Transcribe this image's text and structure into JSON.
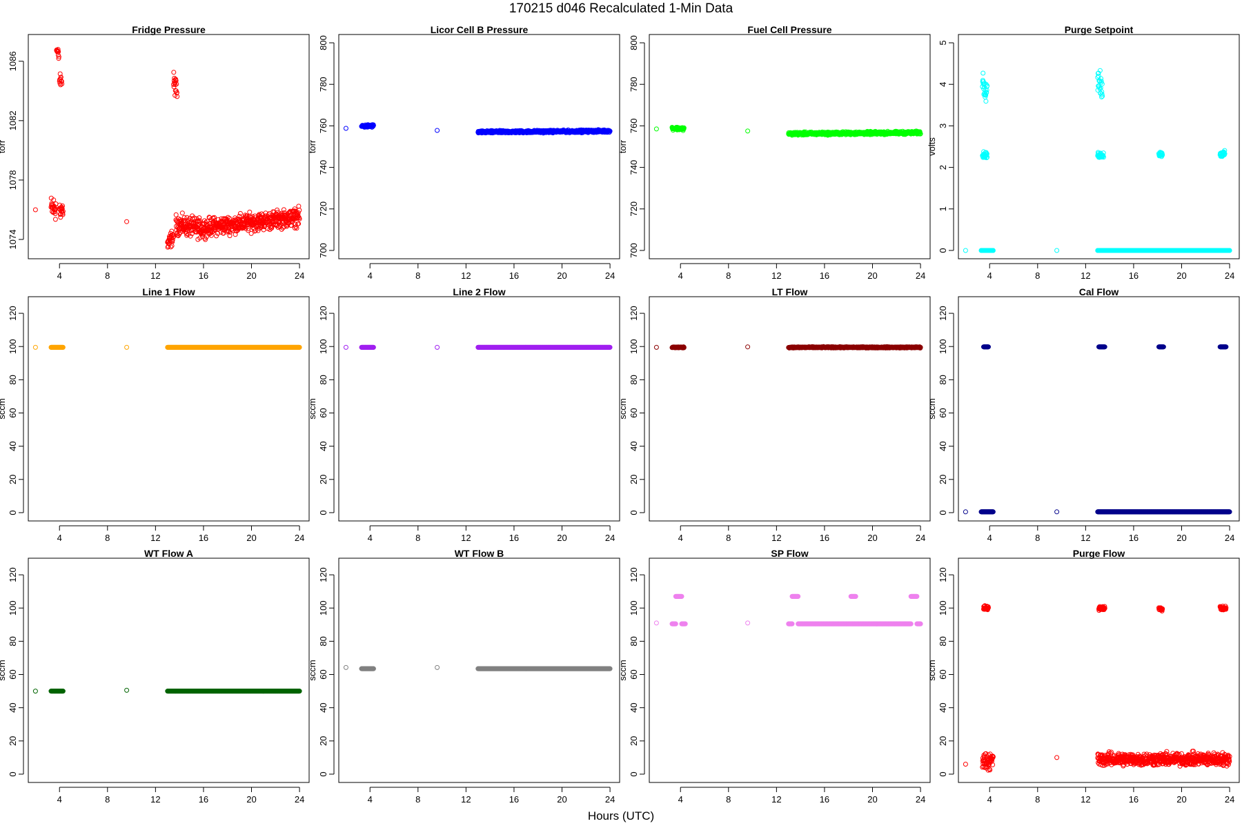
{
  "figure": {
    "title": "170215   d046   Recalculated 1-Min Data",
    "xlabel": "Hours (UTC)"
  },
  "chart_data": [
    {
      "type": "scatter",
      "title": "Fridge Pressure",
      "ylabel": "torr",
      "color": "#ff0000",
      "xlim": [
        1.4,
        24.8
      ],
      "ylim": [
        1072.7,
        1087.8
      ],
      "xticks": [
        4,
        8,
        12,
        16,
        20,
        24
      ],
      "yticks": [
        1074,
        1078,
        1082,
        1086
      ],
      "segments": [
        {
          "x": [
            2.0,
            2.0
          ],
          "y": [
            1076.0,
            1076.0
          ],
          "jitter": 0
        },
        {
          "x": [
            3.3,
            3.7
          ],
          "y": [
            1076.1,
            1076.1
          ],
          "jitter": 0.7
        },
        {
          "x": [
            3.75,
            3.95
          ],
          "y": [
            1086.8,
            1086.3
          ],
          "jitter": 0.35
        },
        {
          "x": [
            4.0,
            4.2
          ],
          "y": [
            1084.7,
            1084.7
          ],
          "jitter": 0.35
        },
        {
          "x": [
            4.0,
            4.3
          ],
          "y": [
            1076.0,
            1076.0
          ],
          "jitter": 0.5
        },
        {
          "x": [
            9.6,
            9.6
          ],
          "y": [
            1075.2,
            1075.2
          ],
          "jitter": 0
        },
        {
          "x": [
            13.0,
            13.5
          ],
          "y": [
            1073.6,
            1074.3
          ],
          "jitter": 0.45
        },
        {
          "x": [
            13.5,
            13.8
          ],
          "y": [
            1084.6,
            1084.0
          ],
          "jitter": 0.55
        },
        {
          "x": [
            13.7,
            16.0
          ],
          "y": [
            1075.0,
            1074.7
          ],
          "jitter": 0.55
        },
        {
          "x": [
            16.0,
            24.0
          ],
          "y": [
            1074.8,
            1075.5
          ],
          "jitter": 0.5
        }
      ]
    },
    {
      "type": "scatter",
      "title": "Licor Cell B Pressure",
      "ylabel": "torr",
      "color": "#0000ff",
      "xlim": [
        1.4,
        24.8
      ],
      "ylim": [
        696,
        804
      ],
      "xticks": [
        4,
        8,
        12,
        16,
        20,
        24
      ],
      "yticks": [
        700,
        720,
        740,
        760,
        780,
        800
      ],
      "segments": [
        {
          "x": [
            2.0,
            2.0
          ],
          "y": [
            758.8,
            758.8
          ],
          "jitter": 0
        },
        {
          "x": [
            3.3,
            4.3
          ],
          "y": [
            759.8,
            760.0
          ],
          "jitter": 0.6
        },
        {
          "x": [
            9.6,
            9.6
          ],
          "y": [
            757.8,
            757.8
          ],
          "jitter": 0
        },
        {
          "x": [
            13.0,
            24.0
          ],
          "y": [
            757.0,
            757.5
          ],
          "jitter": 0.5
        }
      ]
    },
    {
      "type": "scatter",
      "title": "Fuel Cell Pressure",
      "ylabel": "torr",
      "color": "#00ff00",
      "xlim": [
        1.4,
        24.8
      ],
      "ylim": [
        696,
        804
      ],
      "xticks": [
        4,
        8,
        12,
        16,
        20,
        24
      ],
      "yticks": [
        700,
        720,
        740,
        760,
        780,
        800
      ],
      "segments": [
        {
          "x": [
            2.0,
            2.0
          ],
          "y": [
            758.5,
            758.5
          ],
          "jitter": 0
        },
        {
          "x": [
            3.3,
            4.3
          ],
          "y": [
            758.8,
            758.6
          ],
          "jitter": 0.6
        },
        {
          "x": [
            9.6,
            9.6
          ],
          "y": [
            757.5,
            757.5
          ],
          "jitter": 0
        },
        {
          "x": [
            13.0,
            24.0
          ],
          "y": [
            756.2,
            756.7
          ],
          "jitter": 0.6
        }
      ]
    },
    {
      "type": "scatter",
      "title": "Purge Setpoint",
      "ylabel": "volts",
      "color": "#00ffff",
      "xlim": [
        1.4,
        24.8
      ],
      "ylim": [
        -0.2,
        5.2
      ],
      "xticks": [
        4,
        8,
        12,
        16,
        20,
        24
      ],
      "yticks": [
        0,
        1,
        2,
        3,
        4,
        5
      ],
      "segments": [
        {
          "x": [
            2.0,
            2.0
          ],
          "y": [
            0.0,
            0.0
          ],
          "jitter": 0
        },
        {
          "x": [
            3.3,
            4.3
          ],
          "y": [
            0.0,
            0.0
          ],
          "jitter": 0
        },
        {
          "x": [
            3.4,
            3.8
          ],
          "y": [
            4.05,
            3.9
          ],
          "jitter": 0.25
        },
        {
          "x": [
            3.4,
            3.8
          ],
          "y": [
            2.3,
            2.3
          ],
          "jitter": 0.06
        },
        {
          "x": [
            9.6,
            9.6
          ],
          "y": [
            0.0,
            0.0
          ],
          "jitter": 0
        },
        {
          "x": [
            13.0,
            13.4
          ],
          "y": [
            4.15,
            3.8
          ],
          "jitter": 0.25
        },
        {
          "x": [
            13.0,
            13.5
          ],
          "y": [
            2.3,
            2.3
          ],
          "jitter": 0.06
        },
        {
          "x": [
            13.0,
            24.0
          ],
          "y": [
            0.0,
            0.0
          ],
          "jitter": 0
        },
        {
          "x": [
            18.1,
            18.4
          ],
          "y": [
            2.32,
            2.32
          ],
          "jitter": 0.05
        },
        {
          "x": [
            23.2,
            23.6
          ],
          "y": [
            2.32,
            2.32
          ],
          "jitter": 0.06
        }
      ]
    },
    {
      "type": "scatter",
      "title": "Line 1 Flow",
      "ylabel": "sccm",
      "color": "#ffa500",
      "xlim": [
        1.4,
        24.8
      ],
      "ylim": [
        -5,
        130
      ],
      "xticks": [
        4,
        8,
        12,
        16,
        20,
        24
      ],
      "yticks": [
        0,
        20,
        40,
        60,
        80,
        100,
        120
      ],
      "segments": [
        {
          "x": [
            2.0,
            2.0
          ],
          "y": [
            99.5,
            99.5
          ],
          "jitter": 0
        },
        {
          "x": [
            3.3,
            4.3
          ],
          "y": [
            99.5,
            99.5
          ],
          "jitter": 0
        },
        {
          "x": [
            9.6,
            9.6
          ],
          "y": [
            99.5,
            99.5
          ],
          "jitter": 0
        },
        {
          "x": [
            13.0,
            24.0
          ],
          "y": [
            99.5,
            99.5
          ],
          "jitter": 0
        }
      ]
    },
    {
      "type": "scatter",
      "title": "Line 2 Flow",
      "ylabel": "sccm",
      "color": "#a020f0",
      "xlim": [
        1.4,
        24.8
      ],
      "ylim": [
        -5,
        130
      ],
      "xticks": [
        4,
        8,
        12,
        16,
        20,
        24
      ],
      "yticks": [
        0,
        20,
        40,
        60,
        80,
        100,
        120
      ],
      "segments": [
        {
          "x": [
            2.0,
            2.0
          ],
          "y": [
            99.5,
            99.5
          ],
          "jitter": 0
        },
        {
          "x": [
            3.3,
            4.3
          ],
          "y": [
            99.5,
            99.5
          ],
          "jitter": 0
        },
        {
          "x": [
            9.6,
            9.6
          ],
          "y": [
            99.5,
            99.5
          ],
          "jitter": 0
        },
        {
          "x": [
            13.0,
            24.0
          ],
          "y": [
            99.5,
            99.5
          ],
          "jitter": 0
        }
      ]
    },
    {
      "type": "scatter",
      "title": "LT Flow",
      "ylabel": "sccm",
      "color": "#8b0000",
      "xlim": [
        1.4,
        24.8
      ],
      "ylim": [
        -5,
        130
      ],
      "xticks": [
        4,
        8,
        12,
        16,
        20,
        24
      ],
      "yticks": [
        0,
        20,
        40,
        60,
        80,
        100,
        120
      ],
      "segments": [
        {
          "x": [
            2.0,
            2.0
          ],
          "y": [
            99.5,
            99.5
          ],
          "jitter": 0
        },
        {
          "x": [
            3.3,
            4.3
          ],
          "y": [
            99.5,
            99.5
          ],
          "jitter": 0.3
        },
        {
          "x": [
            9.6,
            9.6
          ],
          "y": [
            99.8,
            99.8
          ],
          "jitter": 0
        },
        {
          "x": [
            13.0,
            24.0
          ],
          "y": [
            99.5,
            99.5
          ],
          "jitter": 0.3
        }
      ]
    },
    {
      "type": "scatter",
      "title": "Cal Flow",
      "ylabel": "sccm",
      "color": "#00008b",
      "xlim": [
        1.4,
        24.8
      ],
      "ylim": [
        -5,
        130
      ],
      "xticks": [
        4,
        8,
        12,
        16,
        20,
        24
      ],
      "yticks": [
        0,
        20,
        40,
        60,
        80,
        100,
        120
      ],
      "segments": [
        {
          "x": [
            2.0,
            2.0
          ],
          "y": [
            0.5,
            0.5
          ],
          "jitter": 0
        },
        {
          "x": [
            3.3,
            4.3
          ],
          "y": [
            0.5,
            0.5
          ],
          "jitter": 0
        },
        {
          "x": [
            3.5,
            3.9
          ],
          "y": [
            99.8,
            99.8
          ],
          "jitter": 0
        },
        {
          "x": [
            9.6,
            9.6
          ],
          "y": [
            0.5,
            0.5
          ],
          "jitter": 0
        },
        {
          "x": [
            13.0,
            24.0
          ],
          "y": [
            0.5,
            0.5
          ],
          "jitter": 0
        },
        {
          "x": [
            13.1,
            13.6
          ],
          "y": [
            99.8,
            99.8
          ],
          "jitter": 0
        },
        {
          "x": [
            18.1,
            18.5
          ],
          "y": [
            99.8,
            99.8
          ],
          "jitter": 0
        },
        {
          "x": [
            23.2,
            23.7
          ],
          "y": [
            99.8,
            99.8
          ],
          "jitter": 0
        }
      ]
    },
    {
      "type": "scatter",
      "title": "WT Flow A",
      "ylabel": "sccm",
      "color": "#006400",
      "xlim": [
        1.4,
        24.8
      ],
      "ylim": [
        -5,
        130
      ],
      "xticks": [
        4,
        8,
        12,
        16,
        20,
        24
      ],
      "yticks": [
        0,
        20,
        40,
        60,
        80,
        100,
        120
      ],
      "segments": [
        {
          "x": [
            2.0,
            2.0
          ],
          "y": [
            50.0,
            50.0
          ],
          "jitter": 0
        },
        {
          "x": [
            3.3,
            4.3
          ],
          "y": [
            50.0,
            50.0
          ],
          "jitter": 0
        },
        {
          "x": [
            9.6,
            9.6
          ],
          "y": [
            50.5,
            50.5
          ],
          "jitter": 0
        },
        {
          "x": [
            13.0,
            24.0
          ],
          "y": [
            50.0,
            50.0
          ],
          "jitter": 0
        }
      ]
    },
    {
      "type": "scatter",
      "title": "WT Flow B",
      "ylabel": "sccm",
      "color": "#808080",
      "xlim": [
        1.4,
        24.8
      ],
      "ylim": [
        -5,
        130
      ],
      "xticks": [
        4,
        8,
        12,
        16,
        20,
        24
      ],
      "yticks": [
        0,
        20,
        40,
        60,
        80,
        100,
        120
      ],
      "segments": [
        {
          "x": [
            2.0,
            2.0
          ],
          "y": [
            64.2,
            64.2
          ],
          "jitter": 0
        },
        {
          "x": [
            3.3,
            4.3
          ],
          "y": [
            63.5,
            63.5
          ],
          "jitter": 0
        },
        {
          "x": [
            9.6,
            9.6
          ],
          "y": [
            64.2,
            64.2
          ],
          "jitter": 0
        },
        {
          "x": [
            13.0,
            24.0
          ],
          "y": [
            63.5,
            63.5
          ],
          "jitter": 0
        }
      ]
    },
    {
      "type": "scatter",
      "title": "SP Flow",
      "ylabel": "sccm",
      "color": "#ee82ee",
      "xlim": [
        1.4,
        24.8
      ],
      "ylim": [
        -5,
        130
      ],
      "xticks": [
        4,
        8,
        12,
        16,
        20,
        24
      ],
      "yticks": [
        0,
        20,
        40,
        60,
        80,
        100,
        120
      ],
      "segments": [
        {
          "x": [
            2.0,
            2.0
          ],
          "y": [
            91.0,
            91.0
          ],
          "jitter": 0
        },
        {
          "x": [
            3.3,
            3.6
          ],
          "y": [
            90.5,
            90.5
          ],
          "jitter": 0
        },
        {
          "x": [
            4.1,
            4.4
          ],
          "y": [
            90.5,
            90.5
          ],
          "jitter": 0
        },
        {
          "x": [
            3.6,
            4.1
          ],
          "y": [
            107.0,
            107.0
          ],
          "jitter": 0
        },
        {
          "x": [
            9.6,
            9.6
          ],
          "y": [
            91.0,
            91.0
          ],
          "jitter": 0
        },
        {
          "x": [
            13.0,
            13.3
          ],
          "y": [
            90.5,
            90.5
          ],
          "jitter": 0
        },
        {
          "x": [
            13.3,
            13.8
          ],
          "y": [
            107.0,
            107.0
          ],
          "jitter": 0
        },
        {
          "x": [
            13.8,
            23.2
          ],
          "y": [
            90.5,
            90.5
          ],
          "jitter": 0
        },
        {
          "x": [
            18.2,
            18.6
          ],
          "y": [
            107.0,
            107.0
          ],
          "jitter": 0
        },
        {
          "x": [
            23.2,
            23.7
          ],
          "y": [
            107.0,
            107.0
          ],
          "jitter": 0
        },
        {
          "x": [
            23.7,
            24.0
          ],
          "y": [
            90.5,
            90.5
          ],
          "jitter": 0
        }
      ]
    },
    {
      "type": "scatter",
      "title": "Purge Flow",
      "ylabel": "sccm",
      "color": "#ff0000",
      "xlim": [
        1.4,
        24.8
      ],
      "ylim": [
        -5,
        130
      ],
      "xticks": [
        4,
        8,
        12,
        16,
        20,
        24
      ],
      "yticks": [
        0,
        20,
        40,
        60,
        80,
        100,
        120
      ],
      "segments": [
        {
          "x": [
            2.0,
            2.0
          ],
          "y": [
            6.0,
            6.0
          ],
          "jitter": 0
        },
        {
          "x": [
            3.4,
            4.3
          ],
          "y": [
            8.0,
            8.0
          ],
          "jitter": 4.5
        },
        {
          "x": [
            3.5,
            3.9
          ],
          "y": [
            100.0,
            100.0
          ],
          "jitter": 1.2
        },
        {
          "x": [
            9.6,
            9.6
          ],
          "y": [
            10.0,
            10.0
          ],
          "jitter": 0
        },
        {
          "x": [
            13.0,
            24.0
          ],
          "y": [
            9.0,
            9.0
          ],
          "jitter": 3.2
        },
        {
          "x": [
            13.1,
            13.6
          ],
          "y": [
            100.0,
            100.0
          ],
          "jitter": 1.2
        },
        {
          "x": [
            18.1,
            18.4
          ],
          "y": [
            99.5,
            99.5
          ],
          "jitter": 1.0
        },
        {
          "x": [
            23.2,
            23.7
          ],
          "y": [
            100.0,
            100.0
          ],
          "jitter": 1.2
        }
      ]
    }
  ]
}
